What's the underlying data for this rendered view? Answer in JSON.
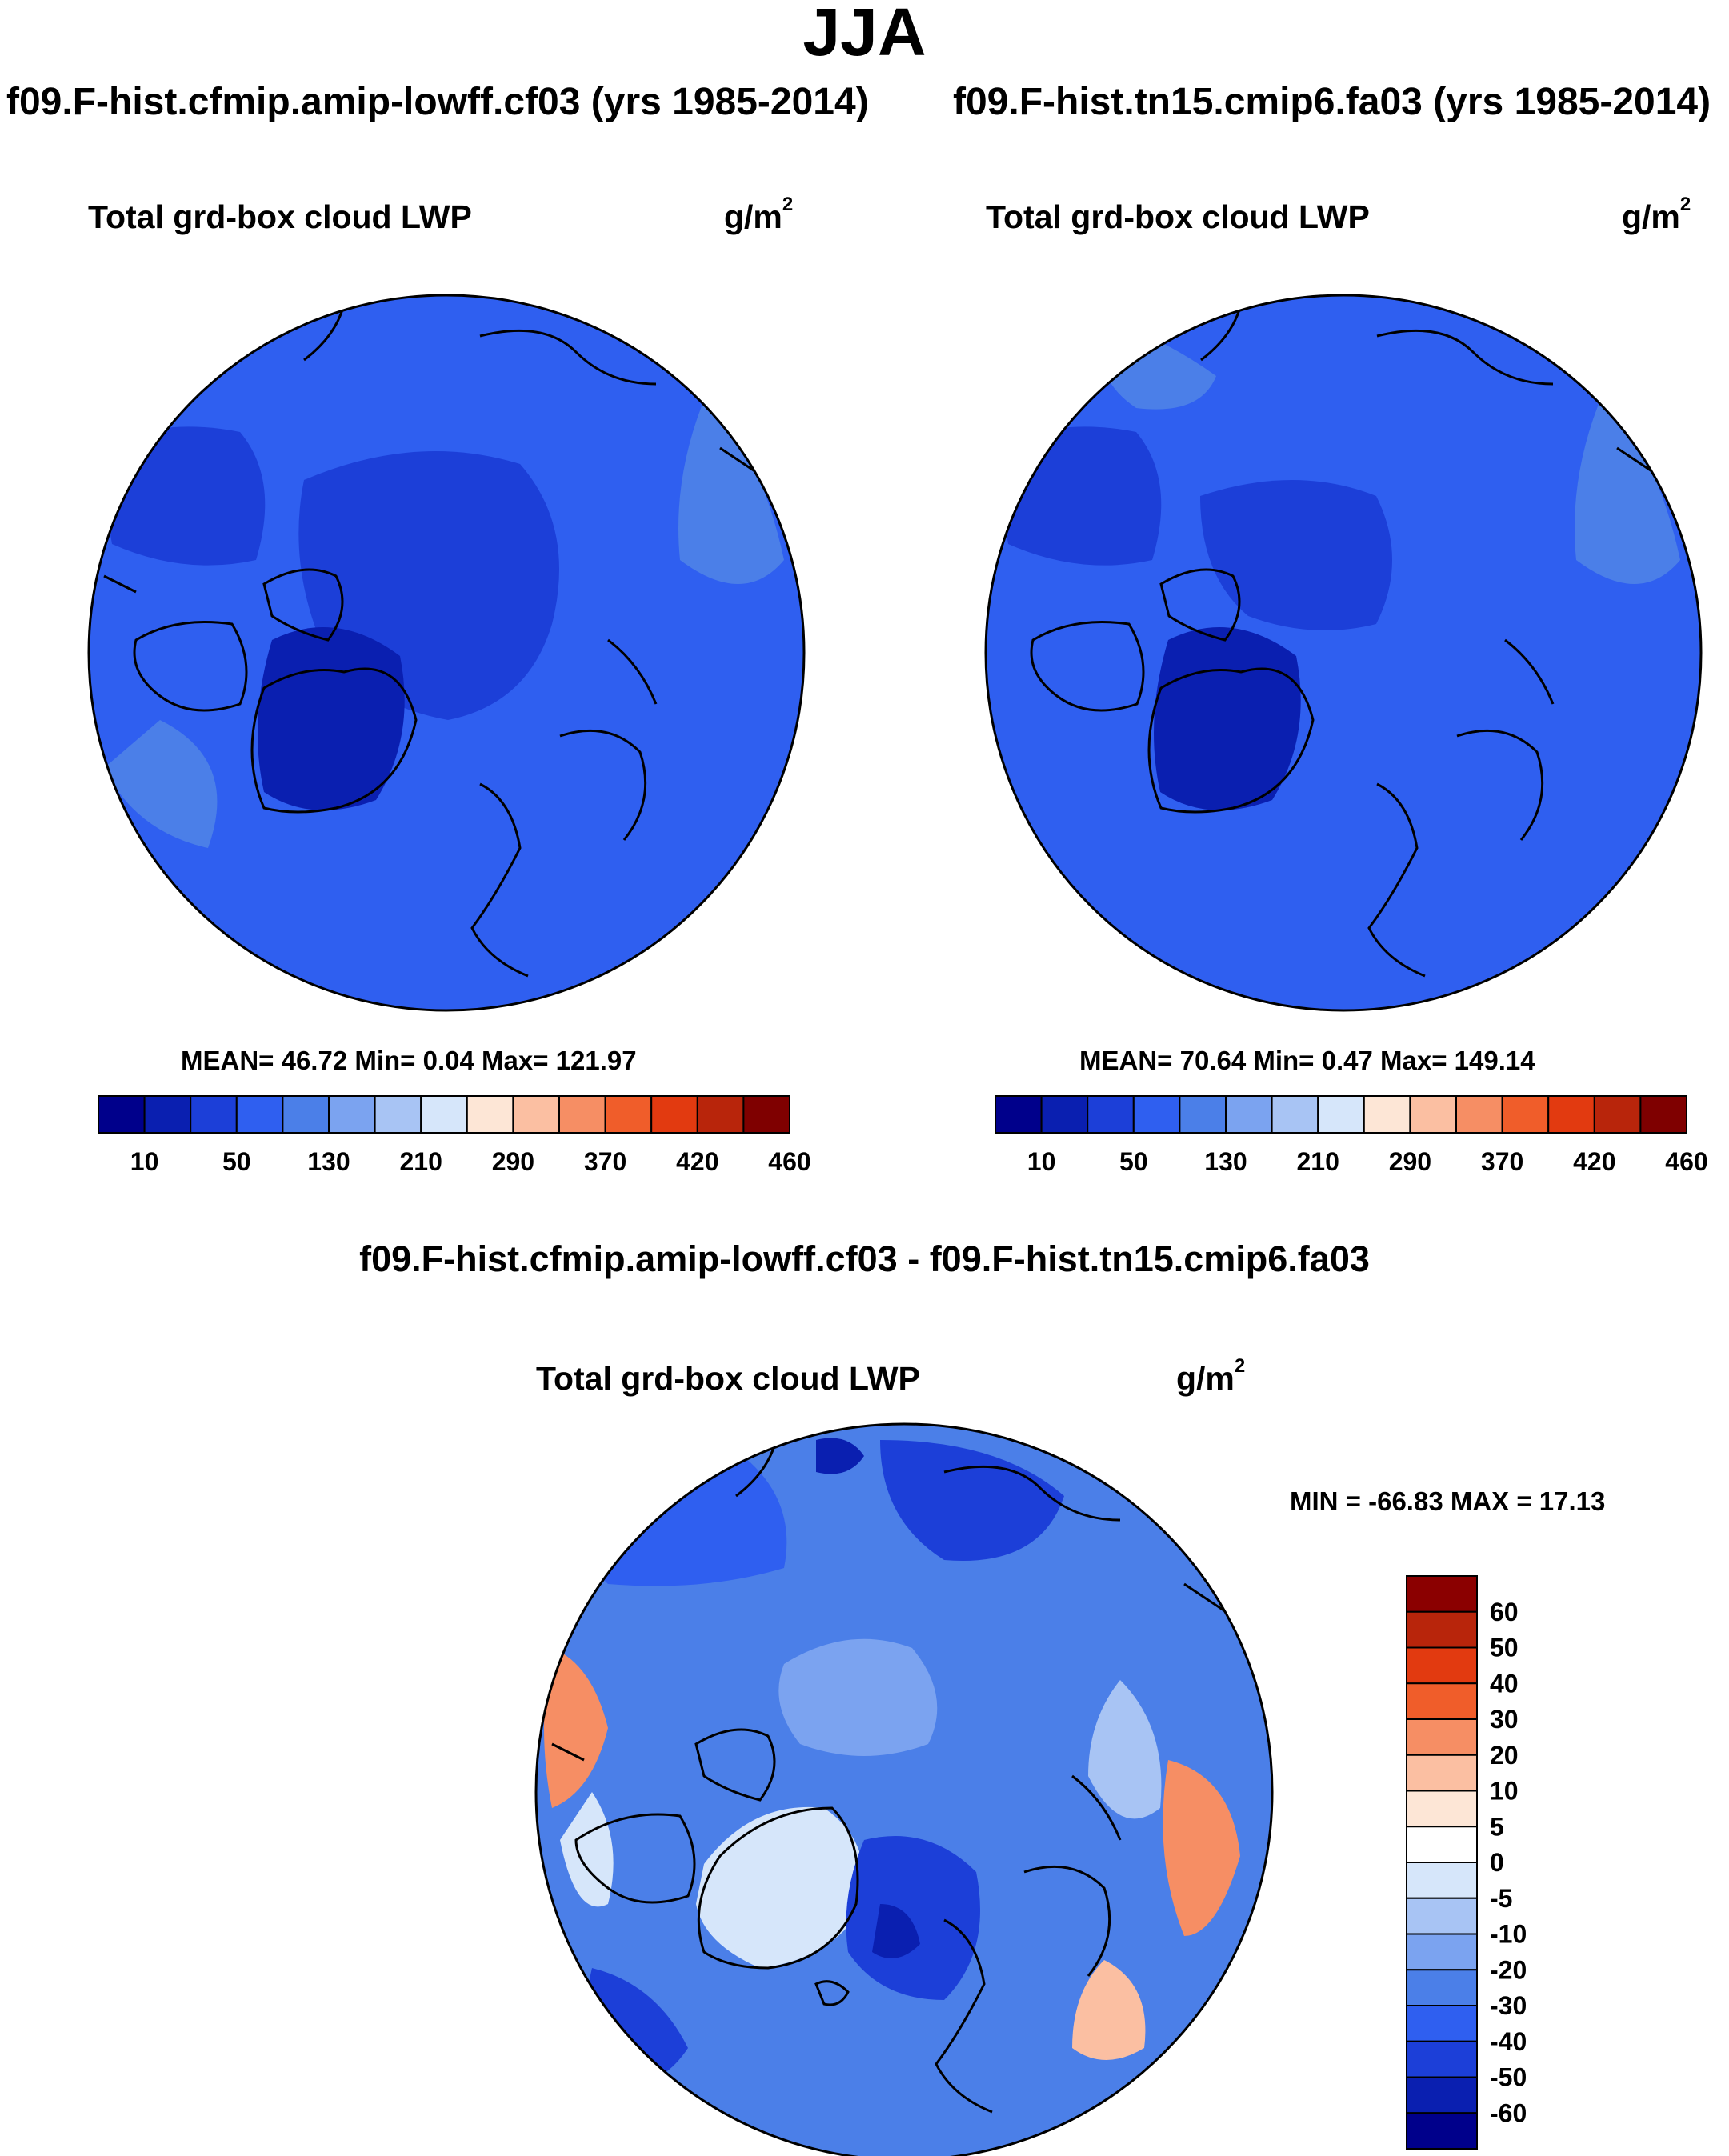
{
  "header": {
    "title": "JJA"
  },
  "panels": [
    {
      "case": "f09.F-hist.cfmip.amip-lowff.cf03 (yrs 1985-2014)",
      "variable": "Total grd-box cloud LWP",
      "units_base": "g/m",
      "units_exp": "2",
      "stats": "MEAN=  46.72  Min=   0.04  Max= 121.97",
      "mean": 46.72,
      "min": 0.04,
      "max": 121.97
    },
    {
      "case": "f09.F-hist.tn15.cmip6.fa03 (yrs 1985-2014)",
      "variable": "Total grd-box cloud LWP",
      "units_base": "g/m",
      "units_exp": "2",
      "stats": "MEAN=  70.64  Min=   0.47  Max= 149.14",
      "mean": 70.64,
      "min": 0.47,
      "max": 149.14
    }
  ],
  "diff": {
    "title": "f09.F-hist.cfmip.amip-lowff.cf03 - f09.F-hist.tn15.cmip6.fa03",
    "variable": "Total grd-box cloud LWP",
    "units_base": "g/m",
    "units_exp": "2",
    "stats": "MIN = -66.83 MAX =  17.13",
    "min": -66.83,
    "max": 17.13
  },
  "chart_data": [
    {
      "type": "heatmap",
      "title": "f09.F-hist.cfmip.amip-lowff.cf03 (yrs 1985-2014)",
      "projection": "north polar stereographic",
      "colorbar_orientation": "horizontal",
      "colorbar_tick_labels": [
        "10",
        "50",
        "130",
        "210",
        "290",
        "370",
        "420",
        "460"
      ],
      "colorbar_colors": [
        "#00008b",
        "#0a1fb0",
        "#1c3fd8",
        "#2f5ff0",
        "#4b7fe8",
        "#7ba3f0",
        "#a8c4f4",
        "#d6e6fa",
        "#fde6d6",
        "#fbbfa2",
        "#f68e64",
        "#f05d2a",
        "#e23a10",
        "#b8250b",
        "#7f0000"
      ],
      "mean": 46.72,
      "min": 0.04,
      "max": 121.97
    },
    {
      "type": "heatmap",
      "title": "f09.F-hist.tn15.cmip6.fa03 (yrs 1985-2014)",
      "projection": "north polar stereographic",
      "colorbar_orientation": "horizontal",
      "colorbar_tick_labels": [
        "10",
        "50",
        "130",
        "210",
        "290",
        "370",
        "420",
        "460"
      ],
      "colorbar_colors": [
        "#00008b",
        "#0a1fb0",
        "#1c3fd8",
        "#2f5ff0",
        "#4b7fe8",
        "#7ba3f0",
        "#a8c4f4",
        "#d6e6fa",
        "#fde6d6",
        "#fbbfa2",
        "#f68e64",
        "#f05d2a",
        "#e23a10",
        "#b8250b",
        "#7f0000"
      ],
      "mean": 70.64,
      "min": 0.47,
      "max": 149.14
    },
    {
      "type": "heatmap",
      "title": "f09.F-hist.cfmip.amip-lowff.cf03 - f09.F-hist.tn15.cmip6.fa03",
      "projection": "north polar stereographic",
      "colorbar_orientation": "vertical",
      "colorbar_tick_labels": [
        "60",
        "50",
        "40",
        "30",
        "20",
        "10",
        "5",
        "0",
        "-5",
        "-10",
        "-20",
        "-30",
        "-40",
        "-50",
        "-60"
      ],
      "colorbar_colors": [
        "#8b0000",
        "#b8250b",
        "#e23a10",
        "#f05d2a",
        "#f68e64",
        "#fbbfa2",
        "#fde6d6",
        "#ffffff",
        "#d6e6fa",
        "#a8c4f4",
        "#7ba3f0",
        "#4b7fe8",
        "#2f5ff0",
        "#1c3fd8",
        "#0a1fb0",
        "#00008b"
      ],
      "min": -66.83,
      "max": 17.13
    }
  ]
}
